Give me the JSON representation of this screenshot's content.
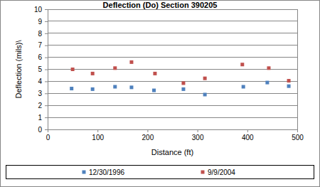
{
  "chart_data": {
    "type": "scatter",
    "title": "Deflection (Do) Section 390205",
    "x_label": "Distance (ft)",
    "y_label": "Deflection (mils)\\",
    "xlim": [
      0,
      500
    ],
    "xticks": [
      0,
      100,
      200,
      300,
      400,
      500
    ],
    "ylim": [
      0,
      10
    ],
    "yticks": [
      0,
      1,
      2,
      3,
      4,
      5,
      6,
      7,
      8,
      9,
      10
    ],
    "grid": true,
    "legend": "bottom",
    "series": [
      {
        "name": "12/30/1996",
        "color": "#4f81bd",
        "marker": "square",
        "x": [
          48,
          90,
          135,
          168,
          213,
          272,
          315,
          392,
          440,
          483
        ],
        "values": [
          3.4,
          3.35,
          3.55,
          3.5,
          3.25,
          3.35,
          2.9,
          3.55,
          3.9,
          3.6
        ]
      },
      {
        "name": "9/9/2004",
        "color": "#c0504d",
        "marker": "square",
        "x": [
          50,
          90,
          135,
          168,
          215,
          272,
          315,
          390,
          443,
          483
        ],
        "values": [
          5.0,
          4.65,
          5.1,
          5.6,
          4.65,
          3.85,
          4.25,
          5.4,
          5.1,
          4.05
        ]
      }
    ]
  }
}
